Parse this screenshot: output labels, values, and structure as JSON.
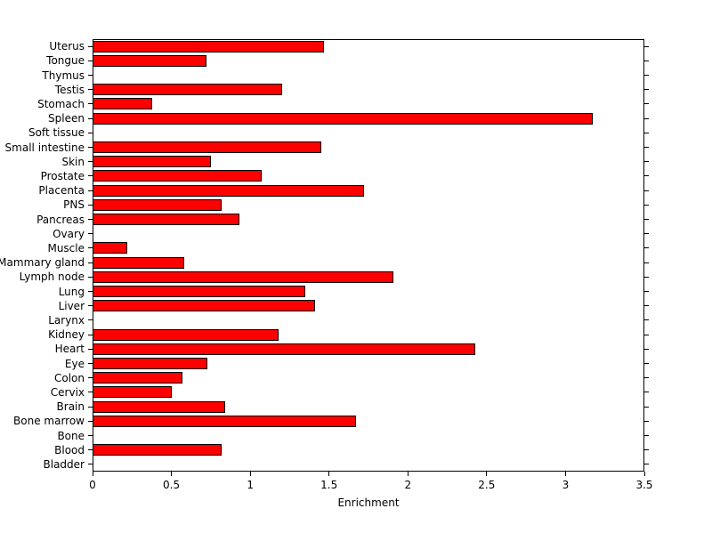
{
  "chart_data": {
    "type": "bar",
    "orientation": "horizontal",
    "title": "",
    "xlabel": "Enrichment",
    "ylabel": "",
    "xlim": [
      0,
      3.5
    ],
    "xticks": [
      0,
      0.5,
      1,
      1.5,
      2,
      2.5,
      3,
      3.5
    ],
    "xtick_labels": [
      "0",
      "0.5",
      "1",
      "1.5",
      "2",
      "2.5",
      "3",
      "3.5"
    ],
    "category_order": "top-to-bottom",
    "categories": [
      "Uterus",
      "Tongue",
      "Thymus",
      "Testis",
      "Stomach",
      "Spleen",
      "Soft tissue",
      "Small intestine",
      "Skin",
      "Prostate",
      "Placenta",
      "PNS",
      "Pancreas",
      "Ovary",
      "Muscle",
      "Mammary gland",
      "Lymph node",
      "Lung",
      "Liver",
      "Larynx",
      "Kidney",
      "Heart",
      "Eye",
      "Colon",
      "Cervix",
      "Brain",
      "Bone marrow",
      "Bone",
      "Blood",
      "Bladder"
    ],
    "values": [
      1.47,
      0.72,
      0,
      1.2,
      0.38,
      3.17,
      0,
      1.45,
      0.75,
      1.07,
      1.72,
      0.82,
      0.93,
      0,
      0.22,
      0.58,
      1.91,
      1.35,
      1.41,
      0,
      1.18,
      2.43,
      0.73,
      0.57,
      0.5,
      0.84,
      1.67,
      0,
      0.82,
      0
    ],
    "bar_color": "#ff0000",
    "bar_edge_color": "#000000",
    "axis_color": "#000000",
    "background_color": "#ffffff",
    "grid": false,
    "legend": null
  }
}
